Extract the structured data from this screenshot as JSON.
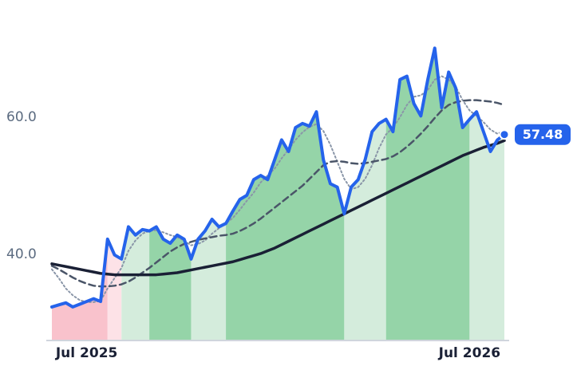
{
  "chart_data": {
    "type": "line",
    "categories": [
      null,
      null,
      null,
      null,
      null,
      "Jul 2025",
      null,
      null,
      null,
      null,
      null,
      null,
      null,
      null,
      null,
      null,
      null,
      null,
      null,
      null,
      null,
      null,
      null,
      null,
      null,
      null,
      null,
      null,
      null,
      null,
      null,
      null,
      null,
      null,
      null,
      null,
      null,
      null,
      null,
      null,
      null,
      null,
      null,
      null,
      null,
      null,
      null,
      null,
      null,
      null,
      null,
      null,
      null,
      null,
      null,
      null,
      null,
      null,
      null,
      null,
      "Jul 2026",
      null,
      null,
      null,
      null,
      null
    ],
    "ylim": [
      27.4,
      74.8
    ],
    "yticks": [
      {
        "value": 40,
        "label": "40.0"
      },
      {
        "value": 60,
        "label": "60.0"
      }
    ],
    "regions": [
      {
        "start": 0,
        "end": 8,
        "color": "#f9c2cc"
      },
      {
        "start": 8,
        "end": 10,
        "color": "#fde2e7"
      },
      {
        "start": 10,
        "end": 14,
        "color": "#d4ecdc"
      },
      {
        "start": 14,
        "end": 20,
        "color": "#95d4a8"
      },
      {
        "start": 20,
        "end": 25,
        "color": "#d4ecdc"
      },
      {
        "start": 25,
        "end": 42,
        "color": "#95d4a8"
      },
      {
        "start": 42,
        "end": 48,
        "color": "#d4ecdc"
      },
      {
        "start": 48,
        "end": 60,
        "color": "#95d4a8"
      },
      {
        "start": 60,
        "end": 65,
        "color": "#d4ecdc"
      }
    ],
    "series": [
      {
        "color": "#8a96a8",
        "style": "dotted",
        "values": [
          37.8,
          36.5,
          35.0,
          34.0,
          33.3,
          33.0,
          33.0,
          33.2,
          35.0,
          36.5,
          38.0,
          40.5,
          42.0,
          43.0,
          43.4,
          43.5,
          43.2,
          42.8,
          42.5,
          42.0,
          41.3,
          41.5,
          42.0,
          43.0,
          43.8,
          44.5,
          45.3,
          46.5,
          47.8,
          49.0,
          50.5,
          51.5,
          52.5,
          54.0,
          55.3,
          56.7,
          57.8,
          58.6,
          59.0,
          58.0,
          56.0,
          53.5,
          51.0,
          49.5,
          49.8,
          51.0,
          53.0,
          55.5,
          57.5,
          58.5,
          60.0,
          61.8,
          63.0,
          63.2,
          64.0,
          65.5,
          66.0,
          65.5,
          64.5,
          62.5,
          61.0,
          60.2,
          59.3,
          58.2,
          57.6,
          58.0
        ]
      },
      {
        "color": "#4a5568",
        "style": "dashed",
        "values": [
          38.3,
          37.8,
          37.2,
          36.6,
          36.1,
          35.7,
          35.4,
          35.3,
          35.3,
          35.4,
          35.6,
          36.0,
          36.6,
          37.3,
          38.0,
          38.8,
          39.6,
          40.4,
          41.0,
          41.5,
          41.8,
          42.1,
          42.3,
          42.5,
          42.7,
          42.8,
          43.0,
          43.4,
          43.9,
          44.5,
          45.2,
          46.0,
          46.8,
          47.6,
          48.4,
          49.2,
          50.0,
          51.0,
          52.0,
          53.0,
          53.5,
          53.6,
          53.5,
          53.3,
          53.2,
          53.3,
          53.5,
          53.7,
          53.9,
          54.3,
          54.9,
          55.7,
          56.6,
          57.6,
          58.7,
          59.9,
          61.0,
          61.8,
          62.2,
          62.4,
          62.5,
          62.5,
          62.4,
          62.3,
          62.1,
          61.8
        ]
      },
      {
        "color": "#1a2035",
        "style": "solid",
        "values": [
          38.6,
          38.4,
          38.2,
          38.0,
          37.8,
          37.6,
          37.4,
          37.2,
          37.1,
          37.0,
          37.0,
          37.0,
          37.0,
          37.0,
          37.0,
          37.0,
          37.1,
          37.2,
          37.3,
          37.5,
          37.7,
          37.9,
          38.1,
          38.3,
          38.5,
          38.7,
          38.9,
          39.2,
          39.5,
          39.8,
          40.1,
          40.5,
          40.9,
          41.4,
          41.9,
          42.4,
          42.9,
          43.4,
          43.9,
          44.4,
          44.9,
          45.4,
          45.9,
          46.4,
          46.9,
          47.4,
          47.9,
          48.4,
          48.9,
          49.4,
          49.9,
          50.4,
          50.9,
          51.4,
          51.9,
          52.4,
          52.9,
          53.4,
          53.9,
          54.4,
          54.8,
          55.2,
          55.6,
          55.9,
          56.2,
          56.6
        ]
      },
      {
        "color": "#2563eb",
        "style": "price",
        "values": [
          32.3,
          32.6,
          32.9,
          32.3,
          32.7,
          33.1,
          33.5,
          33.1,
          42.2,
          39.9,
          39.3,
          44.0,
          42.8,
          43.6,
          43.4,
          44.0,
          42.2,
          41.6,
          42.8,
          42.2,
          39.3,
          42.2,
          43.4,
          45.1,
          44.0,
          44.5,
          46.3,
          48.0,
          48.6,
          50.9,
          51.5,
          50.9,
          53.8,
          56.7,
          55.0,
          58.5,
          59.1,
          58.7,
          60.8,
          53.8,
          50.3,
          49.8,
          45.9,
          49.8,
          50.9,
          53.8,
          57.9,
          59.1,
          59.7,
          57.9,
          65.5,
          66.0,
          62.0,
          60.2,
          65.5,
          70.1,
          61.4,
          66.6,
          64.3,
          58.5,
          59.7,
          60.8,
          57.9,
          55.0,
          56.7,
          57.48
        ]
      }
    ]
  }
}
